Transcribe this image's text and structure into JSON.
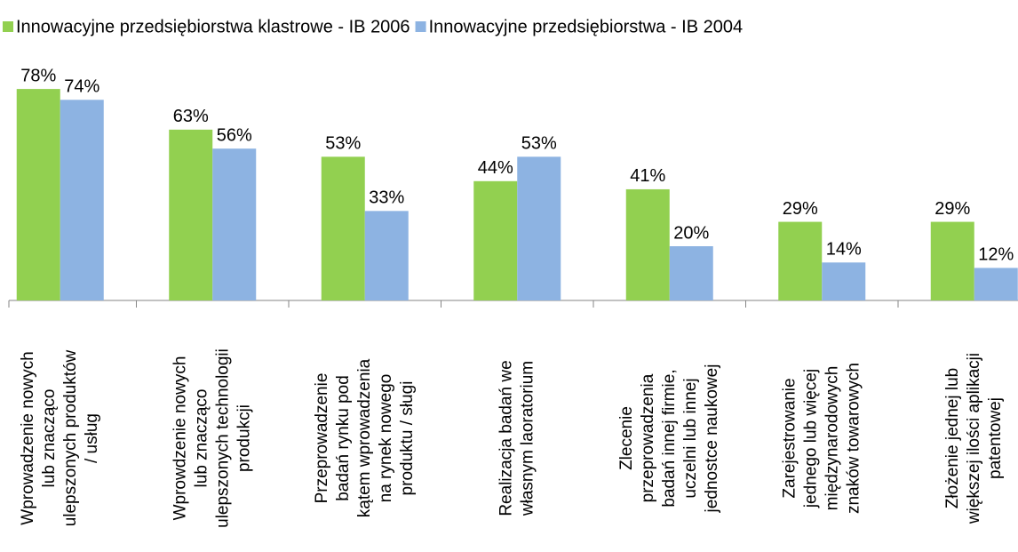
{
  "chart_data": {
    "type": "bar",
    "categories": [
      "Wprowadzenie nowych\nlub znacząco\nulepszonych produktów\n/ usług",
      "Wprowdzenie nowych\nlub znacząco\nulepszonych technologii\nprodukcji",
      "Przeprowadzenie\nbadań rynku pod\nkątem wprowadzenia\nna rynek nowego\nproduktu / sługi",
      "Realizacja badań we\nwłasnym laoratorium",
      "Zlecenie\nprzeprowadzenia\nbadań innej firmie,\nuczelni lub innej\njednostce naukowej",
      "Zarejestrowanie\njednego lub więcej\nmiędzynarodowych\nznaków towarowych",
      "Złożenie jednej lub\nwiększej ilości aplikacji\npatentowej"
    ],
    "series": [
      {
        "name": "Innowacyjne przedsiębiorstwa klastrowe - IB 2006",
        "color": "#92d050",
        "values": [
          78,
          63,
          53,
          44,
          41,
          29,
          29
        ],
        "value_labels": [
          "78%",
          "63%",
          "53%",
          "44%",
          "41%",
          "29%",
          "29%"
        ]
      },
      {
        "name": "Innowacyjne przedsiębiorstwa - IB 2004",
        "color": "#8db3e2",
        "values": [
          74,
          56,
          33,
          53,
          20,
          14,
          12
        ],
        "value_labels": [
          "74%",
          "56%",
          "33%",
          "53%",
          "20%",
          "14%",
          "12%"
        ]
      }
    ],
    "ylim": [
      0,
      100
    ],
    "legend": "top"
  }
}
